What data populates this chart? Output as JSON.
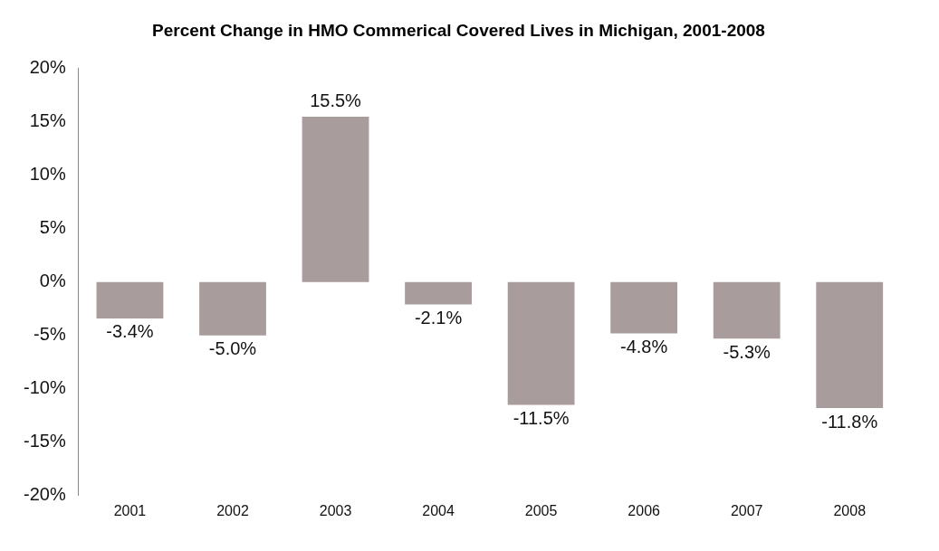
{
  "chart_data": {
    "type": "bar",
    "title": "Percent Change in HMO Commerical Covered Lives in Michigan, 2001-2008",
    "categories": [
      "2001",
      "2002",
      "2003",
      "2004",
      "2005",
      "2006",
      "2007",
      "2008"
    ],
    "values": [
      -3.4,
      -5.0,
      15.5,
      -2.1,
      -11.5,
      -4.8,
      -5.3,
      -11.8
    ],
    "color": "#a89c9c",
    "value_labels": [
      "-3.4%",
      "-5.0%",
      "15.5%",
      "-2.1%",
      "-11.5%",
      "-4.8%",
      "-5.3%",
      "-11.8%"
    ],
    "ylim": [
      -20,
      20
    ],
    "yticks": [
      {
        "value": -20,
        "label": "-20%"
      },
      {
        "value": -15,
        "label": "-15%"
      },
      {
        "value": -10,
        "label": "-10%"
      },
      {
        "value": -5,
        "label": "-5%"
      },
      {
        "value": 0,
        "label": "0%"
      },
      {
        "value": 5,
        "label": "5%"
      },
      {
        "value": 10,
        "label": "10%"
      },
      {
        "value": 15,
        "label": "15%"
      },
      {
        "value": 20,
        "label": "20%"
      }
    ],
    "grid": false,
    "legend": false
  }
}
